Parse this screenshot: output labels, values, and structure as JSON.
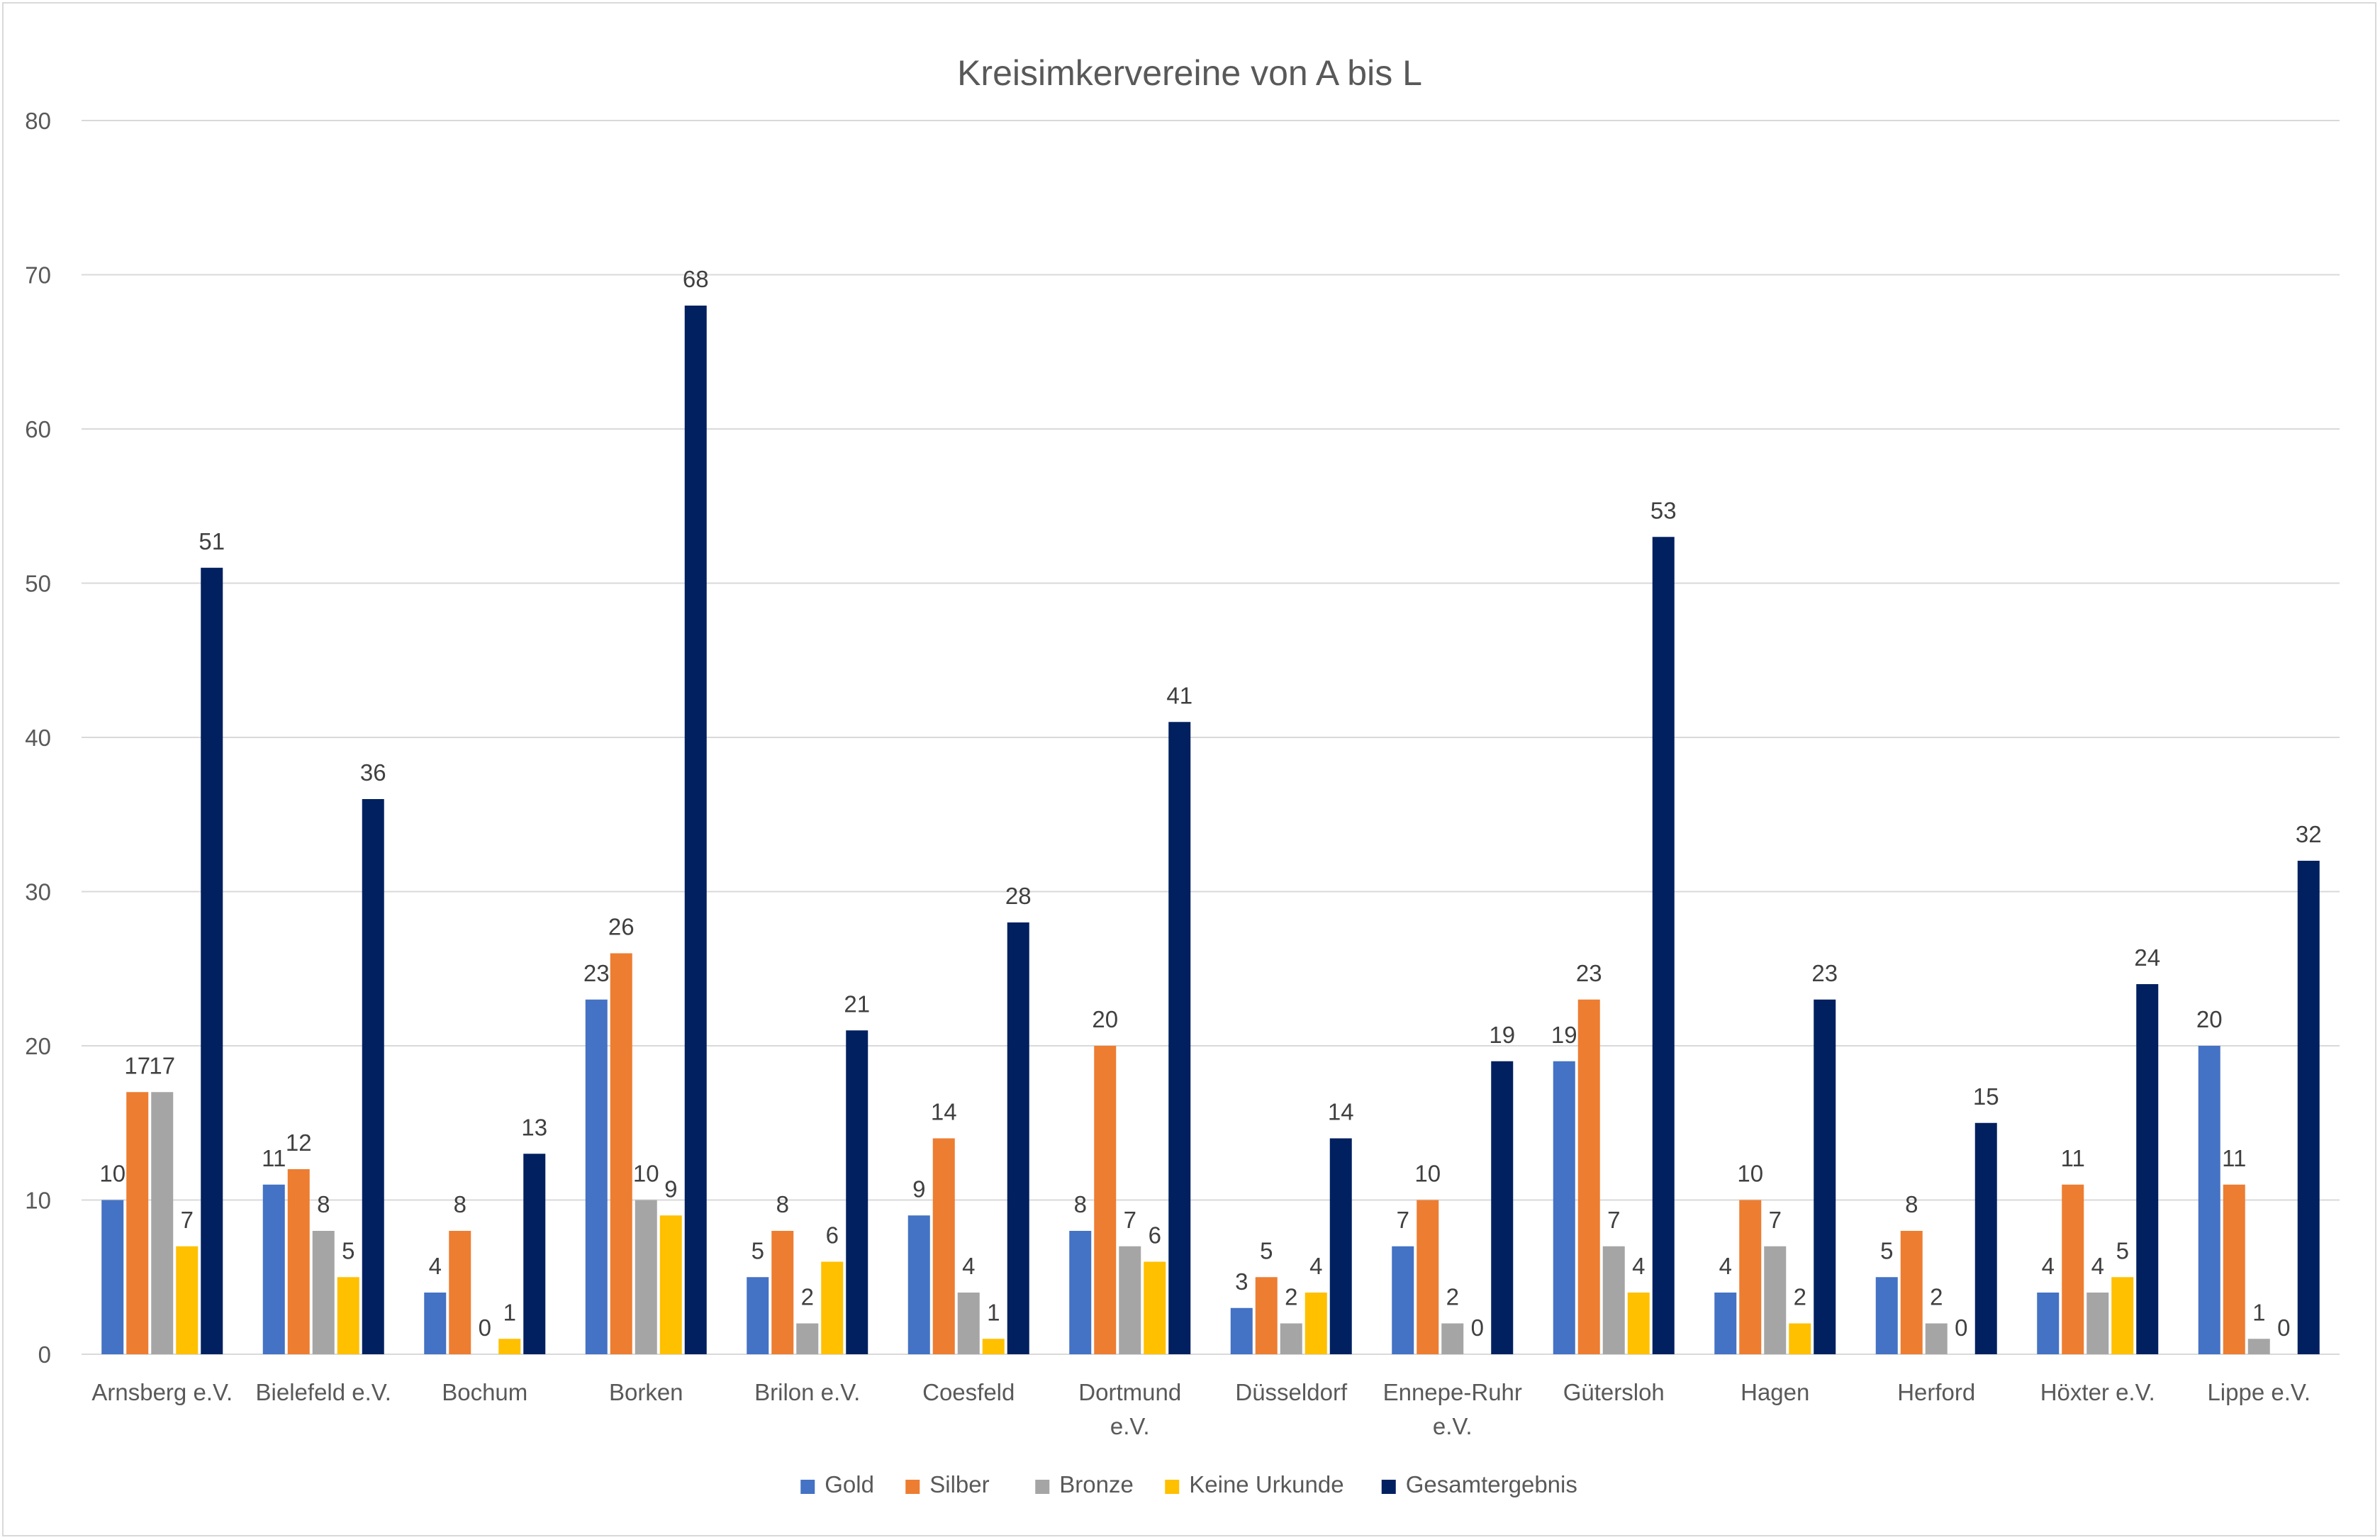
{
  "chart_data": {
    "type": "bar",
    "title": "Kreisimkervereine von A bis L",
    "xlabel": "",
    "ylabel": "",
    "ylim": [
      0,
      80
    ],
    "yticks": [
      0,
      10,
      20,
      30,
      40,
      50,
      60,
      70,
      80
    ],
    "grid": true,
    "legend_position": "bottom",
    "categories": [
      [
        "Arnsberg e.V."
      ],
      [
        "Bielefeld e.V."
      ],
      [
        "Bochum"
      ],
      [
        "Borken"
      ],
      [
        "Brilon e.V."
      ],
      [
        "Coesfeld"
      ],
      [
        "Dortmund",
        "e.V."
      ],
      [
        "Düsseldorf"
      ],
      [
        "Ennepe-Ruhr",
        "e.V."
      ],
      [
        "Gütersloh"
      ],
      [
        "Hagen"
      ],
      [
        "Herford"
      ],
      [
        "Höxter e.V."
      ],
      [
        "Lippe e.V."
      ]
    ],
    "series": [
      {
        "name": "Gold",
        "color": "#4472c4",
        "values": [
          10,
          11,
          4,
          23,
          5,
          9,
          8,
          3,
          7,
          19,
          4,
          5,
          4,
          20
        ]
      },
      {
        "name": "Silber",
        "color": "#ed7d31",
        "values": [
          17,
          12,
          8,
          26,
          8,
          14,
          20,
          5,
          10,
          23,
          10,
          8,
          11,
          11
        ]
      },
      {
        "name": "Bronze",
        "color": "#a5a5a5",
        "values": [
          17,
          8,
          0,
          10,
          2,
          4,
          7,
          2,
          2,
          7,
          7,
          2,
          4,
          1
        ]
      },
      {
        "name": "Keine Urkunde",
        "color": "#ffc000",
        "values": [
          7,
          5,
          1,
          9,
          6,
          1,
          6,
          4,
          0,
          4,
          2,
          0,
          5,
          0
        ]
      },
      {
        "name": "Gesamtergebnis",
        "color": "#002060",
        "values": [
          51,
          36,
          13,
          68,
          21,
          28,
          41,
          14,
          19,
          53,
          23,
          15,
          24,
          32
        ]
      }
    ]
  }
}
